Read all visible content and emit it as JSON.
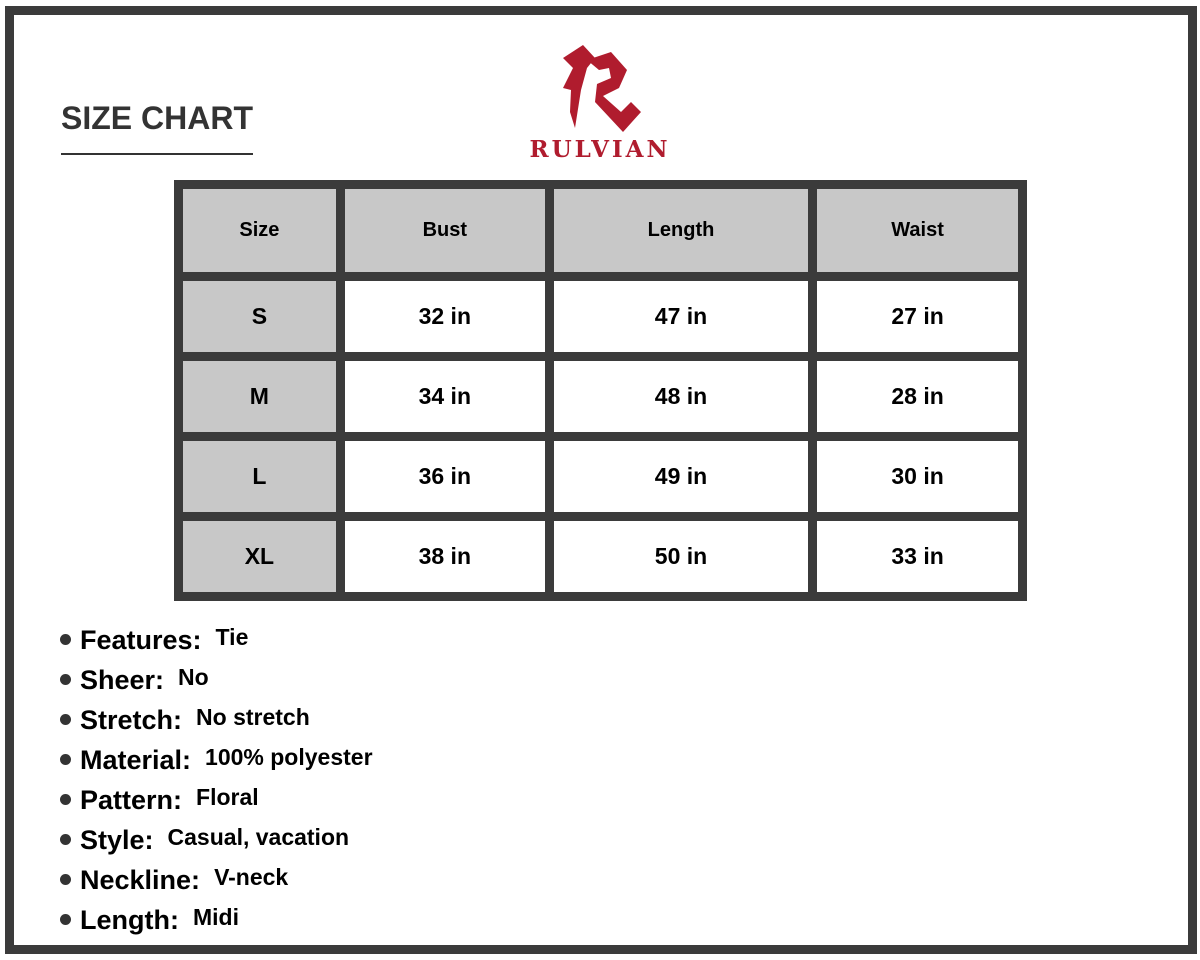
{
  "title": "SIZE CHART",
  "brand": {
    "name": "RULVIAN",
    "color": "#b01c2e"
  },
  "table": {
    "headers": [
      "Size",
      "Bust",
      "Length",
      "Waist"
    ],
    "rows": [
      [
        "S",
        "32 in",
        "47 in",
        "27 in"
      ],
      [
        "M",
        "34 in",
        "48 in",
        "28 in"
      ],
      [
        "L",
        "36 in",
        "49 in",
        "30 in"
      ],
      [
        "XL",
        "38 in",
        "50 in",
        "33 in"
      ]
    ]
  },
  "features": [
    {
      "label": "Features:",
      "value": "Tie"
    },
    {
      "label": "Sheer:",
      "value": "No"
    },
    {
      "label": "Stretch:",
      "value": "No stretch"
    },
    {
      "label": "Material:",
      "value": "100% polyester"
    },
    {
      "label": "Pattern:",
      "value": "Floral"
    },
    {
      "label": "Style:",
      "value": "Casual, vacation"
    },
    {
      "label": "Neckline:",
      "value": "V-neck"
    },
    {
      "label": "Length:",
      "value": "Midi"
    }
  ]
}
